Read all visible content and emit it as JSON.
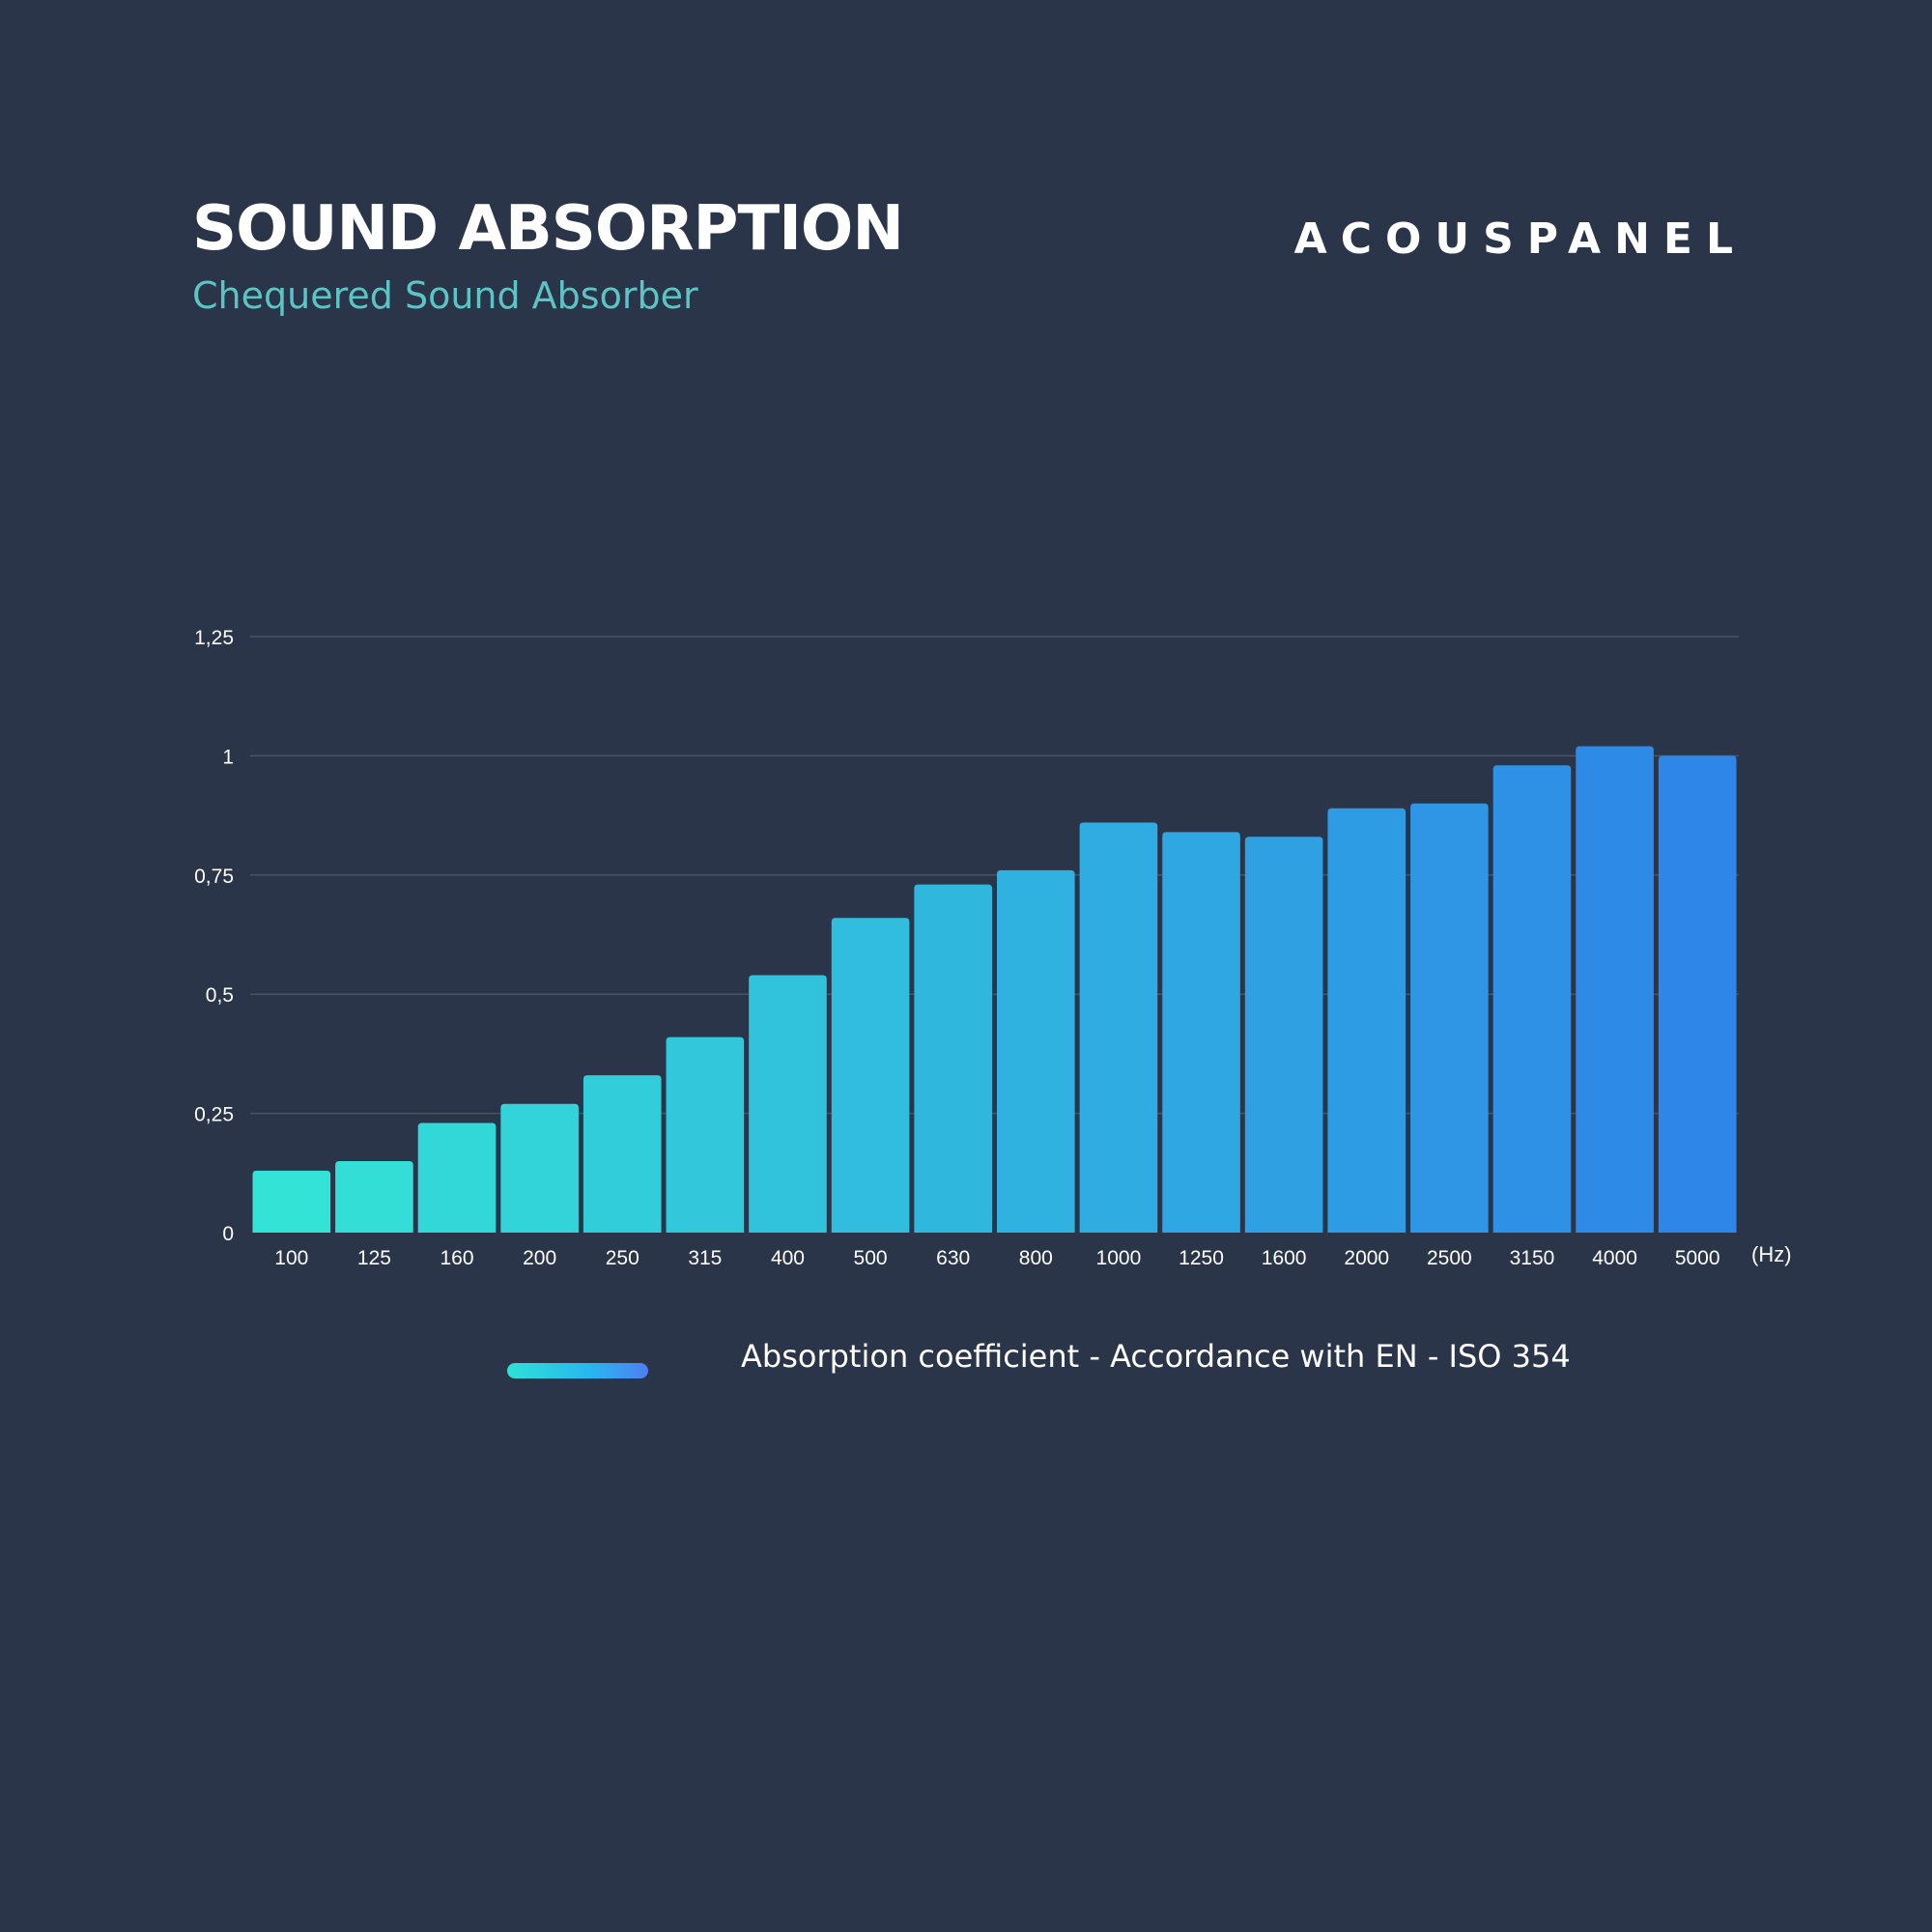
{
  "header": {
    "title": "SOUND ABSORPTION",
    "subtitle": "Chequered Sound Absorber",
    "brand": "ACOUSPANEL"
  },
  "chart_data": {
    "type": "bar",
    "title": "SOUND ABSORPTION",
    "subtitle": "Chequered Sound Absorber",
    "categories": [
      "100",
      "125",
      "160",
      "200",
      "250",
      "315",
      "400",
      "500",
      "630",
      "800",
      "1000",
      "1250",
      "1600",
      "2000",
      "2500",
      "3150",
      "4000",
      "5000"
    ],
    "series": [
      {
        "name": "Absorption coefficient - Accordance with EN - ISO 354",
        "values": [
          0.13,
          0.15,
          0.23,
          0.27,
          0.33,
          0.41,
          0.54,
          0.66,
          0.73,
          0.76,
          0.86,
          0.84,
          0.83,
          0.89,
          0.9,
          0.98,
          1.02,
          1.0
        ]
      }
    ],
    "x_unit": "(Hz)",
    "ylim": [
      0,
      1.25
    ],
    "y_ticks": [
      0,
      0.25,
      0.5,
      0.75,
      1,
      1.25
    ],
    "y_tick_labels": [
      "0",
      "0,25",
      "0,5",
      "0,75",
      "1",
      "1,25"
    ],
    "grid": true,
    "legend_position": "bottom-center",
    "colors": {
      "background": "#2b354a",
      "gridline": "#4a5468",
      "bar_start": "#33e3d6",
      "bar_end": "#2d86e8",
      "subtitle": "#5cc4c4"
    }
  }
}
